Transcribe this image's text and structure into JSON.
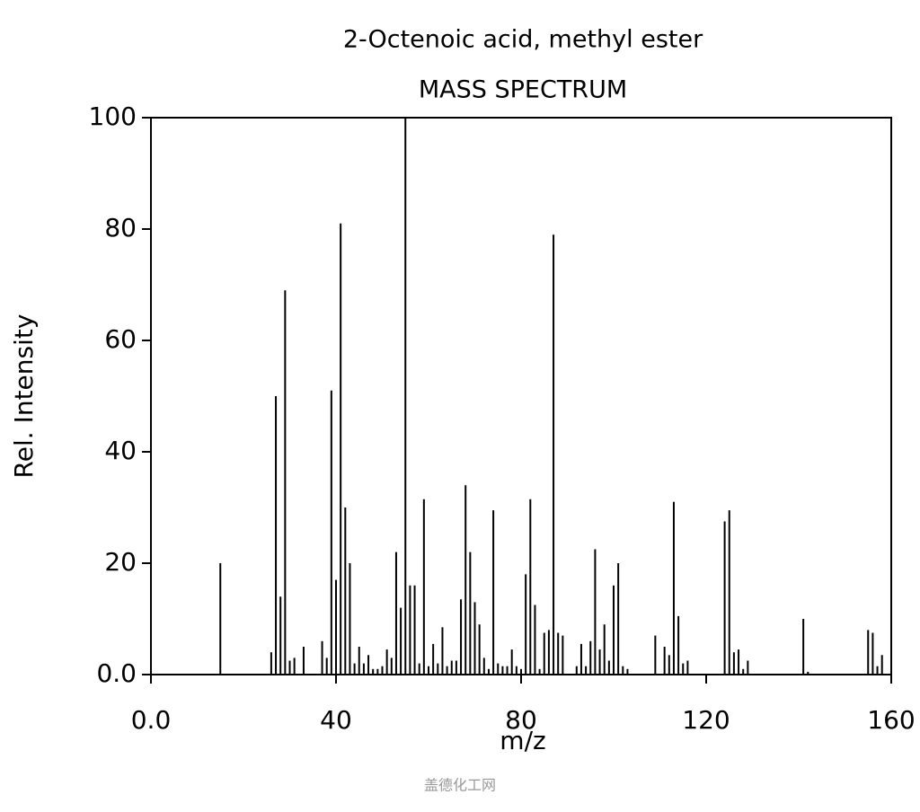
{
  "chart_data": {
    "type": "bar",
    "title": "2-Octenoic acid, methyl ester",
    "subtitle": "MASS SPECTRUM",
    "x_label": "m/z",
    "y_label": "Rel. Intensity",
    "color": "#000000",
    "x": [
      15,
      26,
      27,
      28,
      29,
      30,
      31,
      33,
      37,
      38,
      39,
      40,
      41,
      42,
      43,
      44,
      45,
      46,
      47,
      48,
      49,
      50,
      51,
      52,
      53,
      54,
      55,
      56,
      57,
      58,
      59,
      60,
      61,
      62,
      63,
      64,
      65,
      66,
      67,
      68,
      69,
      70,
      71,
      72,
      73,
      74,
      75,
      76,
      77,
      78,
      79,
      80,
      81,
      82,
      83,
      84,
      85,
      86,
      87,
      88,
      89,
      92,
      93,
      94,
      95,
      96,
      97,
      98,
      99,
      100,
      101,
      102,
      103,
      109,
      111,
      112,
      113,
      114,
      115,
      116,
      124,
      125,
      126,
      127,
      128,
      129,
      141,
      142,
      155,
      156,
      157,
      158
    ],
    "values": [
      20,
      4,
      50,
      14,
      69,
      2.5,
      3,
      5,
      6,
      3,
      51,
      17,
      81,
      30,
      20,
      2,
      5,
      2,
      3.5,
      1,
      1,
      1.5,
      4.5,
      3,
      22,
      12,
      100,
      16,
      16,
      2,
      31.5,
      1.5,
      5.5,
      2,
      8.5,
      1.5,
      2.5,
      2.5,
      13.5,
      34,
      22,
      13,
      9,
      3,
      1,
      29.5,
      2,
      1.5,
      1.5,
      4.5,
      1.5,
      1,
      18,
      31.5,
      12.5,
      1,
      7.5,
      8,
      79,
      7.5,
      7,
      1.5,
      5.5,
      1.5,
      6,
      22.5,
      4.5,
      9,
      2.5,
      16,
      20,
      1.5,
      1,
      7,
      5,
      3.5,
      31,
      10.5,
      2,
      2.5,
      27.5,
      29.5,
      4,
      4.5,
      1,
      2.5,
      10,
      0.5,
      8,
      7.5,
      1.5,
      3.5
    ],
    "xlim": [
      0,
      160
    ],
    "ylim": [
      0,
      100
    ],
    "xticks": [
      {
        "value": 0,
        "label": "0.0"
      },
      40,
      80,
      120,
      160
    ],
    "yticks": [
      {
        "value": 0,
        "label": "0.0"
      },
      20,
      40,
      60,
      80,
      100
    ]
  },
  "watermark": "盖德化工网"
}
